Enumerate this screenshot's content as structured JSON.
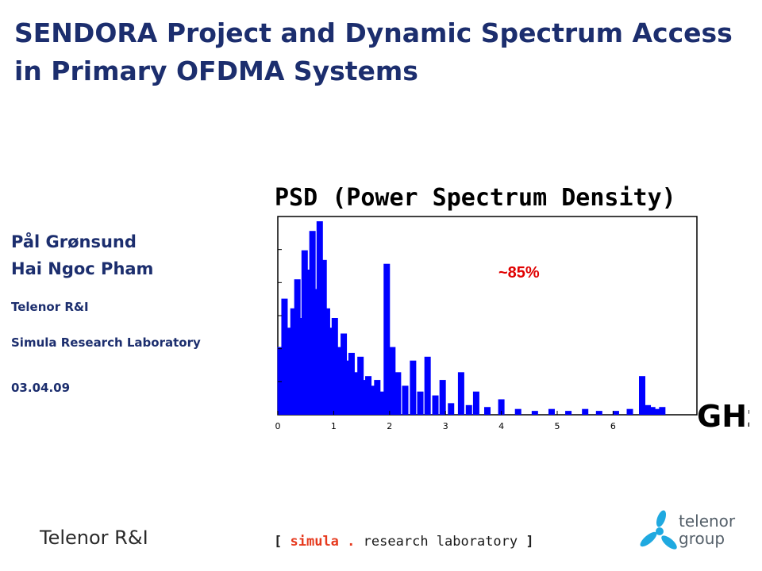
{
  "slide": {
    "title": "SENDORA Project and Dynamic Spectrum Access in Primary OFDMA Systems",
    "authors": [
      "Pål Grønsund",
      "Hai Ngoc Pham"
    ],
    "affiliation_1": "Telenor R&I",
    "affiliation_2": "Simula Research Laboratory",
    "date": "03.04.09"
  },
  "footer": {
    "left_text": "Telenor R&I",
    "simula_open": "[",
    "simula_brand": "simula",
    "simula_dot": ".",
    "simula_rest": "research laboratory",
    "simula_close": "]",
    "telenor_logo_line1": "telenor",
    "telenor_logo_line2": "group"
  },
  "colors": {
    "title": "#1c2e6e",
    "bars": "#0000ff",
    "annotation": "#e00000",
    "telenor_logo": "#1fa9e0",
    "simula_brand": "#e63a1e"
  },
  "chart_data": {
    "type": "bar",
    "title": "PSD (Power Spectrum Density)",
    "xlabel": "GHz",
    "xlim": [
      0,
      7.5
    ],
    "ylim": [
      0,
      1
    ],
    "x_ticks": [
      "0",
      "1",
      "2",
      "3",
      "4",
      "5",
      "6"
    ],
    "y_ticks_labeled": false,
    "grid": false,
    "annotation": "~85%",
    "x": [
      0.05,
      0.12,
      0.2,
      0.28,
      0.35,
      0.42,
      0.48,
      0.55,
      0.62,
      0.68,
      0.75,
      0.82,
      0.88,
      0.95,
      1.02,
      1.1,
      1.18,
      1.25,
      1.32,
      1.4,
      1.48,
      1.55,
      1.62,
      1.7,
      1.78,
      1.85,
      1.95,
      2.05,
      2.15,
      2.28,
      2.42,
      2.55,
      2.68,
      2.82,
      2.95,
      3.1,
      3.28,
      3.42,
      3.55,
      3.75,
      4.0,
      4.3,
      4.6,
      4.9,
      5.2,
      5.5,
      5.75,
      6.05,
      6.3,
      6.52,
      6.62,
      6.7,
      6.8,
      6.88
    ],
    "values": [
      0.35,
      0.6,
      0.45,
      0.55,
      0.7,
      0.5,
      0.85,
      0.75,
      0.95,
      0.65,
      1.0,
      0.8,
      0.55,
      0.45,
      0.5,
      0.35,
      0.42,
      0.28,
      0.32,
      0.22,
      0.3,
      0.18,
      0.2,
      0.15,
      0.18,
      0.12,
      0.78,
      0.35,
      0.22,
      0.15,
      0.28,
      0.12,
      0.3,
      0.1,
      0.18,
      0.06,
      0.22,
      0.05,
      0.12,
      0.04,
      0.08,
      0.03,
      0.02,
      0.03,
      0.02,
      0.03,
      0.02,
      0.02,
      0.03,
      0.2,
      0.05,
      0.04,
      0.03,
      0.04
    ]
  }
}
